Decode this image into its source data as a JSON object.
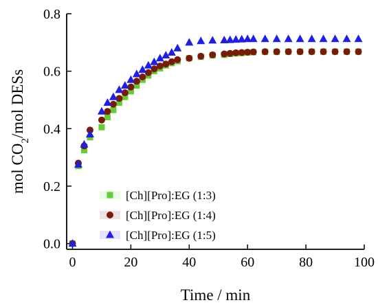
{
  "chart_data": {
    "type": "scatter",
    "xlabel": "Time / min",
    "ylabel_parts": [
      "mol CO",
      "2",
      "/mol DESs"
    ],
    "xlim": [
      -2,
      100
    ],
    "ylim": [
      -0.02,
      0.8
    ],
    "xticks": [
      0,
      20,
      40,
      60,
      80,
      100
    ],
    "yticks": [
      0.0,
      0.2,
      0.4,
      0.6,
      0.8
    ],
    "xtick_labels": [
      "0",
      "20",
      "40",
      "60",
      "80",
      "100"
    ],
    "ytick_labels": [
      "0.0",
      "0.2",
      "0.4",
      "0.6",
      "0.8"
    ],
    "legend_position": "lower-left",
    "series": [
      {
        "name": "[Ch][Pro]:EG (1:3)",
        "marker": "square",
        "color": "#66cc33",
        "x": [
          0,
          2,
          4,
          6,
          10,
          12,
          14,
          16,
          18,
          20,
          22,
          24,
          26,
          28,
          30,
          32,
          34,
          36,
          40,
          44,
          48,
          52,
          54,
          56,
          58,
          60,
          62,
          66,
          70,
          74,
          78,
          82,
          86,
          90,
          94,
          98
        ],
        "y": [
          0.0,
          0.27,
          0.325,
          0.37,
          0.405,
          0.44,
          0.465,
          0.49,
          0.51,
          0.53,
          0.55,
          0.57,
          0.585,
          0.6,
          0.61,
          0.62,
          0.628,
          0.635,
          0.645,
          0.65,
          0.655,
          0.657,
          0.66,
          0.662,
          0.663,
          0.665,
          0.666,
          0.667,
          0.667,
          0.668,
          0.668,
          0.668,
          0.668,
          0.668,
          0.668,
          0.668
        ]
      },
      {
        "name": "[Ch][Pro]:EG (1:4)",
        "marker": "circle",
        "color": "#7a1a0a",
        "x": [
          0,
          2,
          4,
          6,
          10,
          12,
          14,
          16,
          18,
          20,
          22,
          24,
          26,
          28,
          30,
          32,
          34,
          36,
          40,
          44,
          48,
          52,
          54,
          56,
          58,
          60,
          62,
          66,
          70,
          74,
          78,
          82,
          86,
          90,
          94,
          98
        ],
        "y": [
          0.0,
          0.28,
          0.34,
          0.395,
          0.43,
          0.46,
          0.485,
          0.505,
          0.525,
          0.545,
          0.565,
          0.58,
          0.595,
          0.608,
          0.618,
          0.625,
          0.633,
          0.64,
          0.645,
          0.652,
          0.657,
          0.66,
          0.662,
          0.664,
          0.665,
          0.666,
          0.667,
          0.668,
          0.668,
          0.668,
          0.668,
          0.668,
          0.668,
          0.668,
          0.668,
          0.668
        ]
      },
      {
        "name": "[Ch][Pro]:EG (1:5)",
        "marker": "triangle",
        "color": "#1e1ee6",
        "x": [
          0,
          2,
          4,
          6,
          10,
          12,
          14,
          16,
          18,
          20,
          22,
          24,
          26,
          28,
          30,
          32,
          34,
          36,
          40,
          44,
          48,
          52,
          54,
          56,
          58,
          60,
          62,
          66,
          70,
          74,
          78,
          82,
          86,
          90,
          94,
          98
        ],
        "y": [
          0.0,
          0.275,
          0.345,
          0.38,
          0.46,
          0.49,
          0.51,
          0.535,
          0.55,
          0.57,
          0.59,
          0.605,
          0.62,
          0.632,
          0.645,
          0.655,
          0.665,
          0.68,
          0.7,
          0.705,
          0.707,
          0.708,
          0.709,
          0.71,
          0.711,
          0.712,
          0.712,
          0.712,
          0.712,
          0.712,
          0.712,
          0.712,
          0.712,
          0.712,
          0.712,
          0.712
        ]
      }
    ]
  }
}
